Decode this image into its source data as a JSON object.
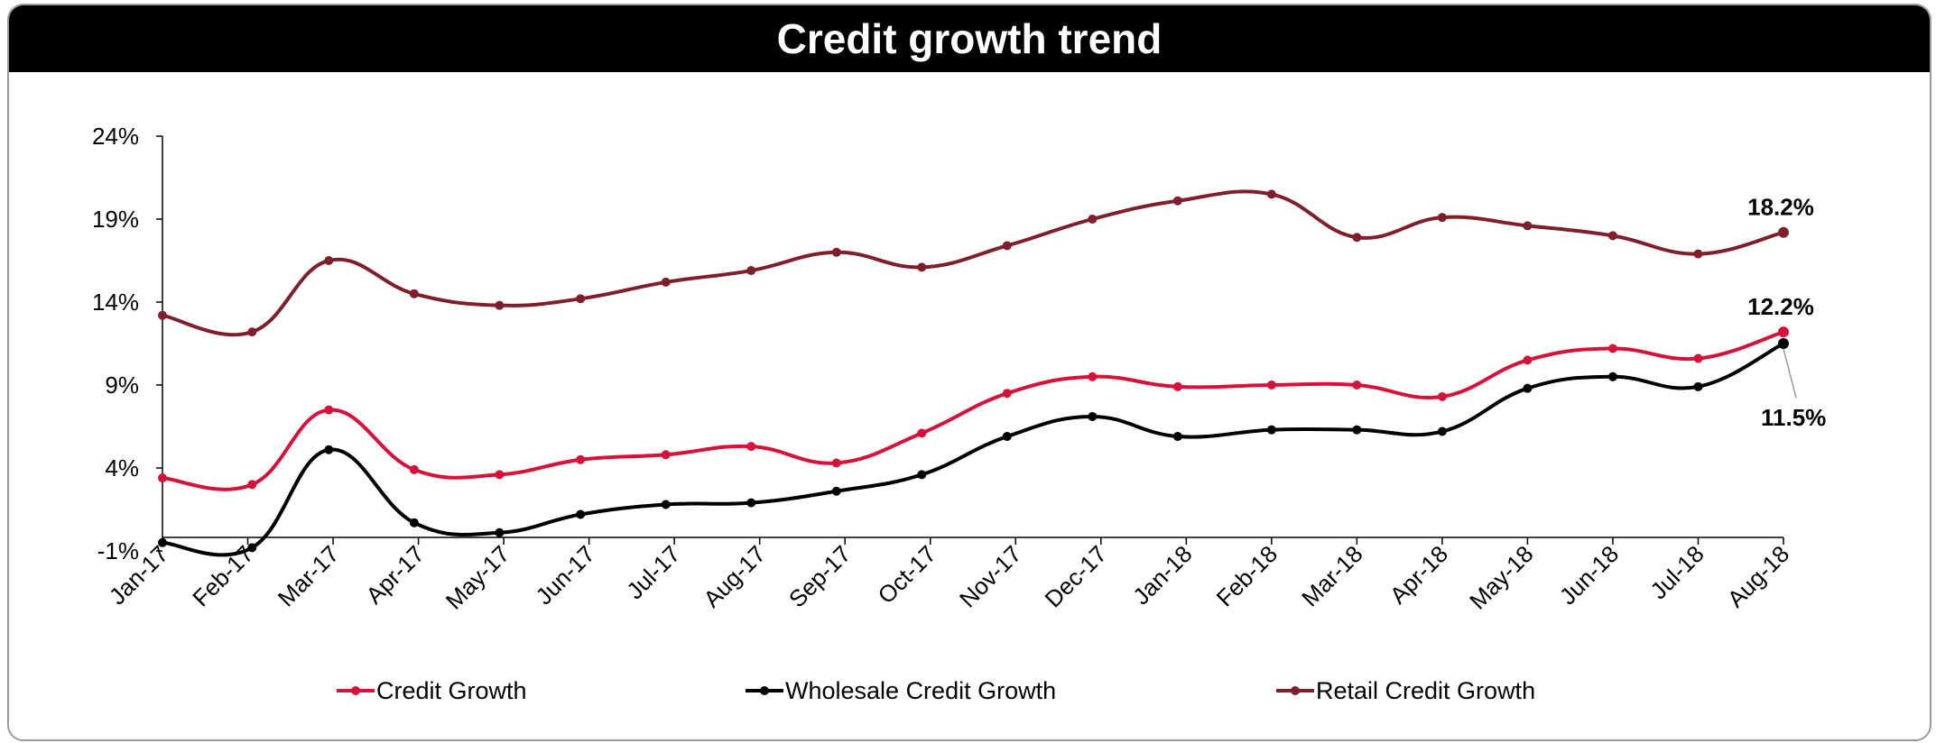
{
  "chart_data": {
    "type": "line",
    "title": "Credit growth trend",
    "categories": [
      "Jan-17",
      "Feb-17",
      "Mar-17",
      "Apr-17",
      "May-17",
      "Jun-17",
      "Jul-17",
      "Aug-17",
      "Sep-17",
      "Oct-17",
      "Nov-17",
      "Dec-17",
      "Jan-18",
      "Feb-18",
      "Mar-18",
      "Apr-18",
      "May-18",
      "Jun-18",
      "Jul-18",
      "Aug-18"
    ],
    "y_ticks": [
      "24%",
      "19%",
      "14%",
      "9%",
      "4%",
      "-1%"
    ],
    "ylim": [
      -1,
      24
    ],
    "y_unit": "%",
    "grid": false,
    "legend_position": "bottom",
    "series": [
      {
        "name": "Credit Growth",
        "color": "#D6113A",
        "x": [
          0,
          1.05,
          1.95,
          2.95,
          3.95,
          4.9,
          5.9,
          6.9,
          7.9,
          8.9,
          9.9,
          10.9,
          11.9,
          13.0,
          14.0,
          15.0,
          16.0,
          17.0,
          18.0,
          19.0
        ],
        "values": [
          3.4,
          3.0,
          7.5,
          3.9,
          3.6,
          4.5,
          4.8,
          5.3,
          4.3,
          6.1,
          8.5,
          9.5,
          8.9,
          9.0,
          9.0,
          8.3,
          10.5,
          11.2,
          10.6,
          12.2
        ]
      },
      {
        "name": "Wholesale Credit Growth",
        "color": "#000000",
        "x": [
          0,
          1.05,
          1.95,
          2.95,
          3.95,
          4.9,
          5.9,
          6.9,
          7.9,
          8.9,
          9.9,
          10.9,
          11.9,
          13.0,
          14.0,
          15.0,
          16.0,
          17.0,
          18.0,
          19.0
        ],
        "values": [
          -0.5,
          -0.8,
          5.1,
          0.7,
          0.1,
          1.2,
          1.8,
          1.9,
          2.6,
          3.6,
          5.9,
          7.1,
          5.9,
          6.3,
          6.3,
          6.2,
          8.8,
          9.5,
          8.9,
          11.5
        ]
      },
      {
        "name": "Retail Credit Growth",
        "color": "#7E1F2B",
        "x": [
          0,
          1.05,
          1.95,
          2.95,
          3.95,
          4.9,
          5.9,
          6.9,
          7.9,
          8.9,
          9.9,
          10.9,
          11.9,
          13.0,
          14.0,
          15.0,
          16.0,
          17.0,
          18.0,
          19.0
        ],
        "values": [
          13.2,
          12.2,
          16.5,
          14.5,
          13.8,
          14.2,
          15.2,
          15.9,
          17.0,
          16.1,
          17.4,
          19.0,
          20.1,
          20.5,
          17.9,
          19.1,
          18.6,
          18.0,
          16.9,
          18.2
        ]
      }
    ],
    "annotations": [
      {
        "text": "18.2%",
        "series": 2
      },
      {
        "text": "12.2%",
        "series": 0
      },
      {
        "text": "11.5%",
        "series": 1
      }
    ]
  }
}
